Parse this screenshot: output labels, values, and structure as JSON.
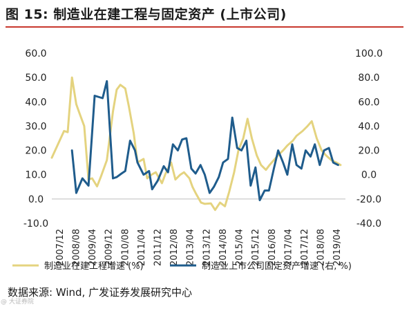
{
  "figure": {
    "title": "图 15:  制造业在建工程与固定资产 (上市公司)",
    "source": "数据来源:  Wind,  广发证券发展研究中心",
    "stamp": "@ 大证券院"
  },
  "chart_data": {
    "type": "line",
    "y_left": {
      "ticks": [
        "60.0",
        "50.0",
        "40.0",
        "30.0",
        "20.0",
        "10.0",
        "0.0",
        "-10.0"
      ],
      "range": [
        -10,
        60
      ]
    },
    "y_right": {
      "ticks": [
        "100.0",
        "80.0",
        "60.0",
        "40.0",
        "20.0",
        "0.0",
        "-20.0",
        "-40.0"
      ],
      "range": [
        -40,
        100
      ]
    },
    "x_labels": [
      "2007/12",
      "2008/08",
      "2009/04",
      "2009/12",
      "2010/08",
      "2011/04",
      "2011/12",
      "2012/08",
      "2013/04",
      "2013/12",
      "2014/08",
      "2015/04",
      "2015/12",
      "2016/08",
      "2017/04",
      "2017/12",
      "2018/08",
      "2019/04"
    ],
    "x_range": [
      0,
      48
    ],
    "series": [
      {
        "name": "制造业在建工程增速 (%)",
        "axis": "left",
        "color": "#e4d37f",
        "x": [
          0,
          2,
          2.6,
          3.3,
          4,
          4.5,
          5.3,
          6,
          6.6,
          7.4,
          8,
          9,
          10,
          10.6,
          11.2,
          12,
          12.6,
          13.4,
          14,
          15,
          15.6,
          16.3,
          17,
          18,
          18.6,
          19.5,
          20.2,
          21,
          21.6,
          22.5,
          23,
          23.6,
          24.4,
          25,
          26,
          26.7,
          27.5,
          28.3,
          29,
          29.8,
          30.5,
          31.3,
          32,
          32.7,
          33.5,
          34.2,
          35,
          35.6,
          36.3,
          37,
          37.8,
          38.5,
          39.4,
          40,
          41,
          41.8,
          42.5,
          43.3,
          44.1,
          44.8,
          45.7,
          46.5,
          47.2
        ],
        "y": [
          17,
          28,
          27.5,
          50,
          39,
          35.5,
          30,
          8,
          8.5,
          5.2,
          9,
          16,
          36,
          45,
          47,
          45.5,
          38,
          27,
          15,
          16.5,
          8.5,
          10,
          11,
          6.5,
          10.5,
          15,
          8,
          10,
          11,
          8.5,
          5,
          2,
          -1.5,
          -2,
          -1.8,
          -4.5,
          -1.5,
          -3,
          3,
          11,
          20,
          25,
          33,
          25,
          18,
          14,
          12,
          14,
          16,
          18,
          20,
          22,
          24,
          26,
          28,
          30,
          32,
          25,
          20,
          18,
          16,
          15,
          14
        ]
      },
      {
        "name": "制造业上市公司固定资产增速 (右, %)",
        "axis": "right",
        "color": "#1f5c8c",
        "x": [
          3.3,
          4,
          5,
          6,
          7,
          8.3,
          9,
          10,
          10.6,
          11.4,
          12,
          12.8,
          13.6,
          14,
          15,
          15.9,
          16.4,
          17.3,
          18.3,
          19,
          19.8,
          20.6,
          21.3,
          22,
          22.8,
          23.5,
          24.3,
          25,
          25.8,
          26.5,
          27.3,
          28,
          28.8,
          29.5,
          30.3,
          31,
          31.8,
          32.5,
          33.3,
          34,
          34.8,
          35.5,
          36.3,
          37,
          37.8,
          38.5,
          39.3,
          40,
          40.8,
          41.5,
          42.3,
          43,
          43.8,
          44.5,
          45.3,
          46,
          46.8
        ],
        "y": [
          20,
          -15,
          -3,
          -9,
          65,
          63,
          77,
          -3,
          -2,
          1,
          3,
          28,
          20,
          10,
          0,
          3,
          -12,
          -5,
          7,
          2,
          25,
          20,
          29,
          30,
          5,
          1,
          8,
          0,
          -15,
          -10,
          -2,
          10,
          13,
          47,
          22,
          20,
          28,
          -9,
          6,
          -21,
          -13,
          -13,
          5,
          20,
          10,
          0,
          25,
          8,
          5,
          20,
          15,
          25,
          8,
          20,
          22,
          10,
          8
        ]
      }
    ],
    "legend": [
      {
        "label": "制造业在建工程增速 (%)",
        "color": "#e4d37f"
      },
      {
        "label": "制造业上市公司固定资产增速 (右, %)",
        "color": "#1f5c8c"
      }
    ]
  }
}
